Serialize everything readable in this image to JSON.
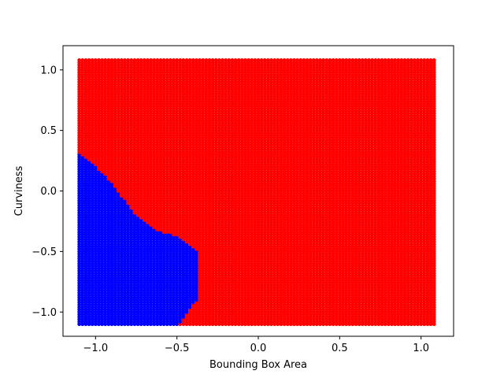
{
  "chart_data": {
    "type": "scatter",
    "title": "",
    "xlabel": "Bounding Box Area",
    "ylabel": "Curviness",
    "xlim": [
      -1.2,
      1.2
    ],
    "ylim": [
      -1.2,
      1.2
    ],
    "xticks": [
      -1.0,
      -0.5,
      0.0,
      0.5,
      1.0
    ],
    "yticks": [
      -1.0,
      -0.5,
      0.0,
      0.5,
      1.0
    ],
    "xtick_labels": [
      "−1.0",
      "−0.5",
      "0.0",
      "0.5",
      "1.0"
    ],
    "ytick_labels": [
      "−1.0",
      "−0.5",
      "0.0",
      "0.5",
      "1.0"
    ],
    "grid": false,
    "legend": "none",
    "grid_range": {
      "x": [
        -1.1,
        1.08
      ],
      "y": [
        -1.1,
        1.08
      ],
      "step": 0.02
    },
    "classes": [
      {
        "label": "0",
        "color": "#ff0000",
        "region": "background"
      },
      {
        "label": "1",
        "color": "#0000ff",
        "region": "lower-left"
      }
    ],
    "decision_boundary": [
      {
        "x": -1.1,
        "y": 0.31
      },
      {
        "x": -1.05,
        "y": 0.26
      },
      {
        "x": -1.0,
        "y": 0.2
      },
      {
        "x": -0.95,
        "y": 0.14
      },
      {
        "x": -0.9,
        "y": 0.07
      },
      {
        "x": -0.85,
        "y": -0.03
      },
      {
        "x": -0.8,
        "y": -0.11
      },
      {
        "x": -0.75,
        "y": -0.2
      },
      {
        "x": -0.7,
        "y": -0.26
      },
      {
        "x": -0.65,
        "y": -0.3
      },
      {
        "x": -0.6,
        "y": -0.34
      },
      {
        "x": -0.55,
        "y": -0.35
      },
      {
        "x": -0.5,
        "y": -0.37
      },
      {
        "x": -0.45,
        "y": -0.42
      },
      {
        "x": -0.4,
        "y": -0.47
      },
      {
        "x": -0.38,
        "y": -0.5
      },
      {
        "x": -0.38,
        "y": -0.9
      },
      {
        "x": -0.42,
        "y": -0.97
      },
      {
        "x": -0.46,
        "y": -1.04
      },
      {
        "x": -0.49,
        "y": -1.1
      }
    ]
  }
}
